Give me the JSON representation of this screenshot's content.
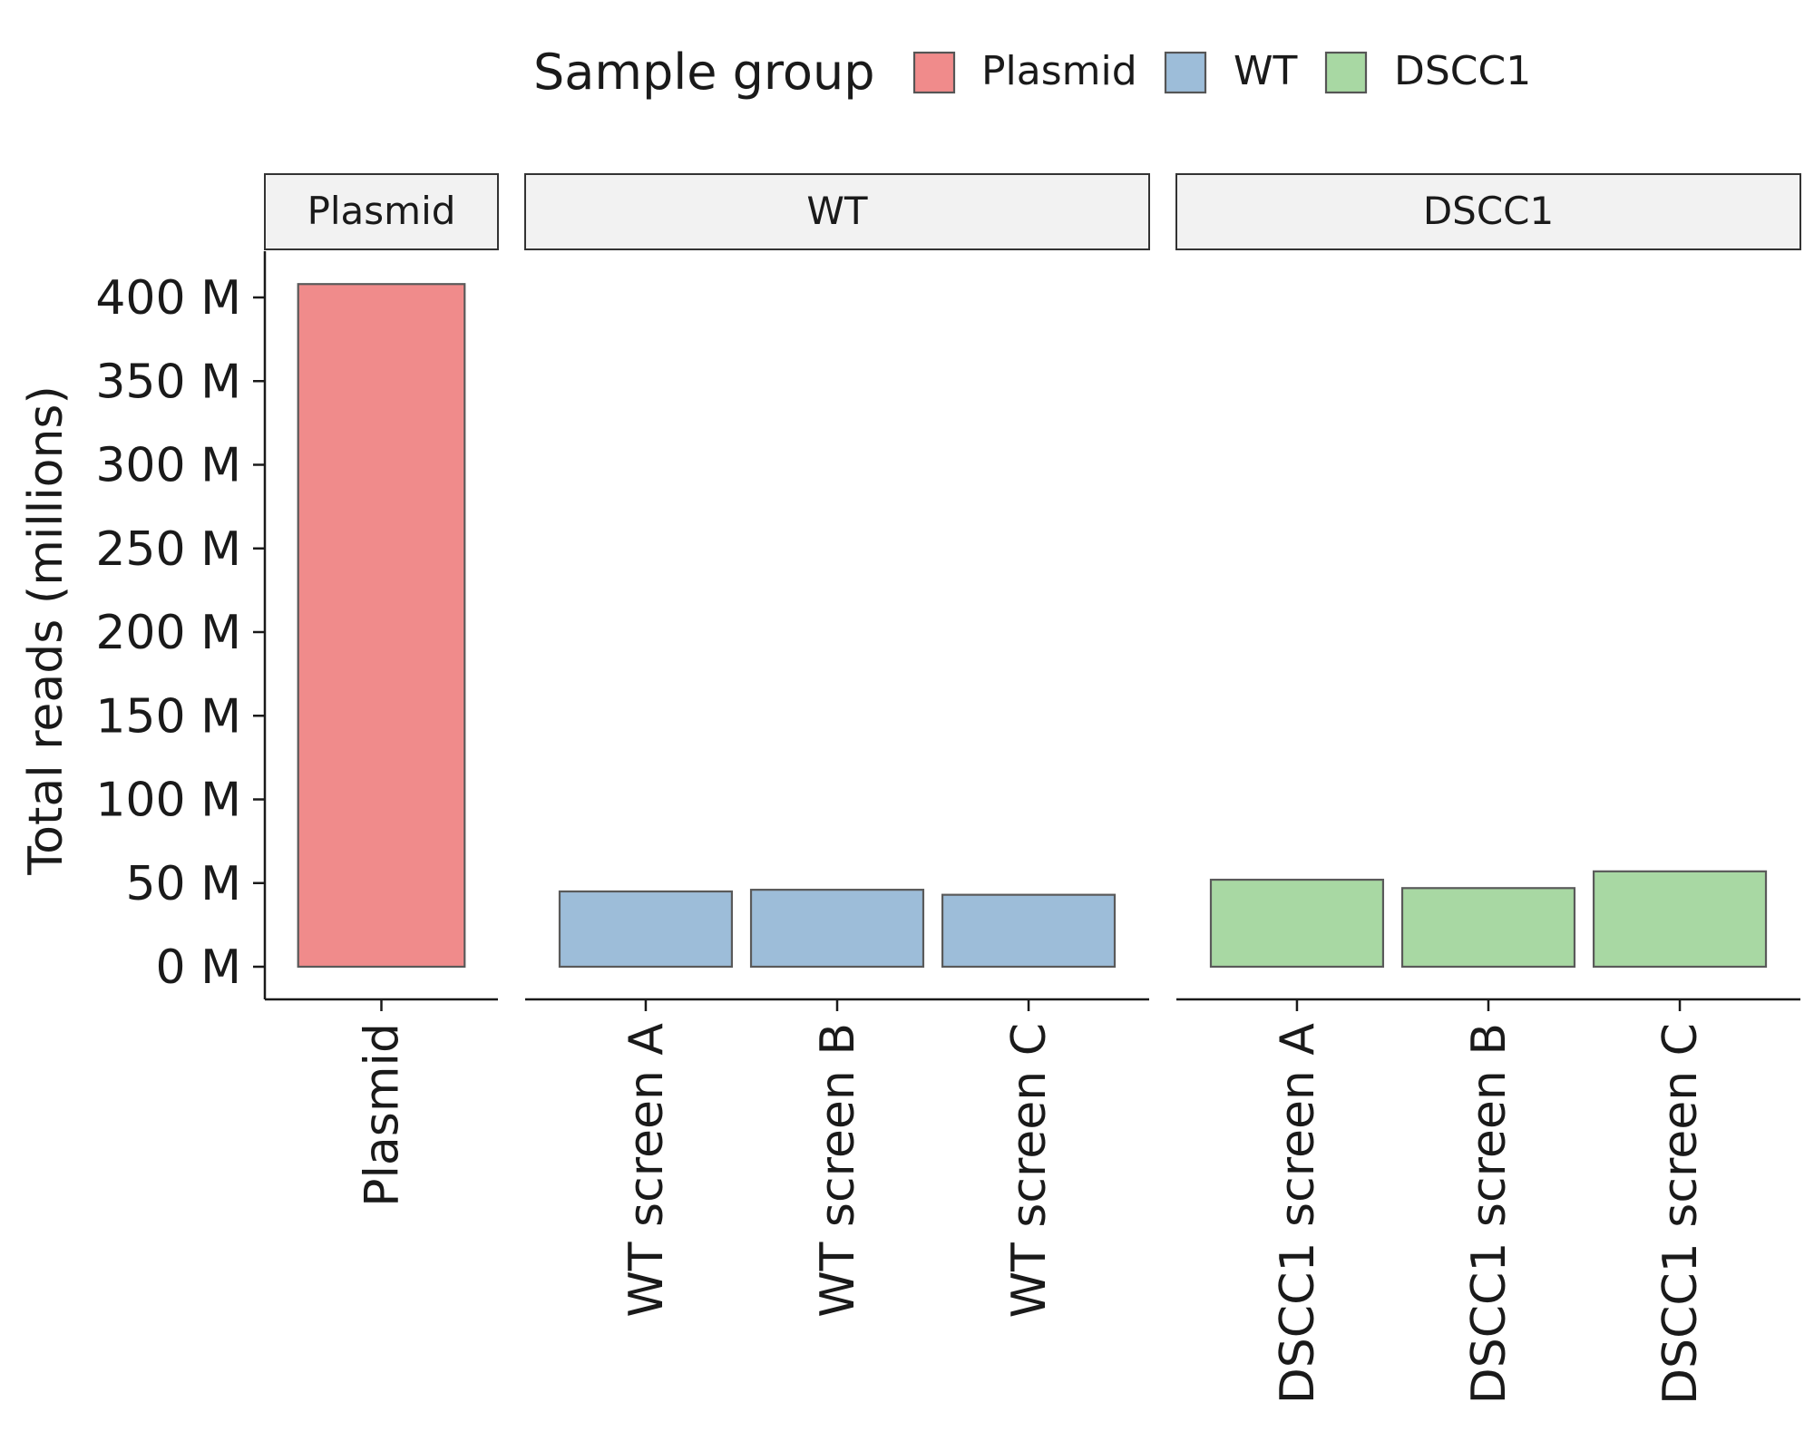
{
  "chart_data": {
    "type": "bar",
    "ylabel": "Total reads (millions)",
    "ylim": [
      0,
      420
    ],
    "y_ticks": [
      0,
      50,
      100,
      150,
      200,
      250,
      300,
      350,
      400
    ],
    "y_tick_labels": [
      "0 M",
      "50 M",
      "100 M",
      "150 M",
      "200 M",
      "250 M",
      "300 M",
      "350 M",
      "400 M"
    ],
    "legend": {
      "title": "Sample group",
      "position": "top",
      "entries": [
        {
          "name": "Plasmid",
          "color": "#f08b8b"
        },
        {
          "name": "WT",
          "color": "#9dbdd9"
        },
        {
          "name": "DSCC1",
          "color": "#a8d8a3"
        }
      ]
    },
    "facets": [
      {
        "label": "Plasmid",
        "color": "#f08b8b",
        "categories": [
          "Plasmid"
        ],
        "values": [
          408
        ]
      },
      {
        "label": "WT",
        "color": "#9dbdd9",
        "categories": [
          "WT screen A",
          "WT screen B",
          "WT screen C"
        ],
        "values": [
          45,
          46,
          43
        ]
      },
      {
        "label": "DSCC1",
        "color": "#a8d8a3",
        "categories": [
          "DSCC1 screen A",
          "DSCC1 screen B",
          "DSCC1 screen C"
        ],
        "values": [
          52,
          47,
          57
        ]
      }
    ]
  }
}
